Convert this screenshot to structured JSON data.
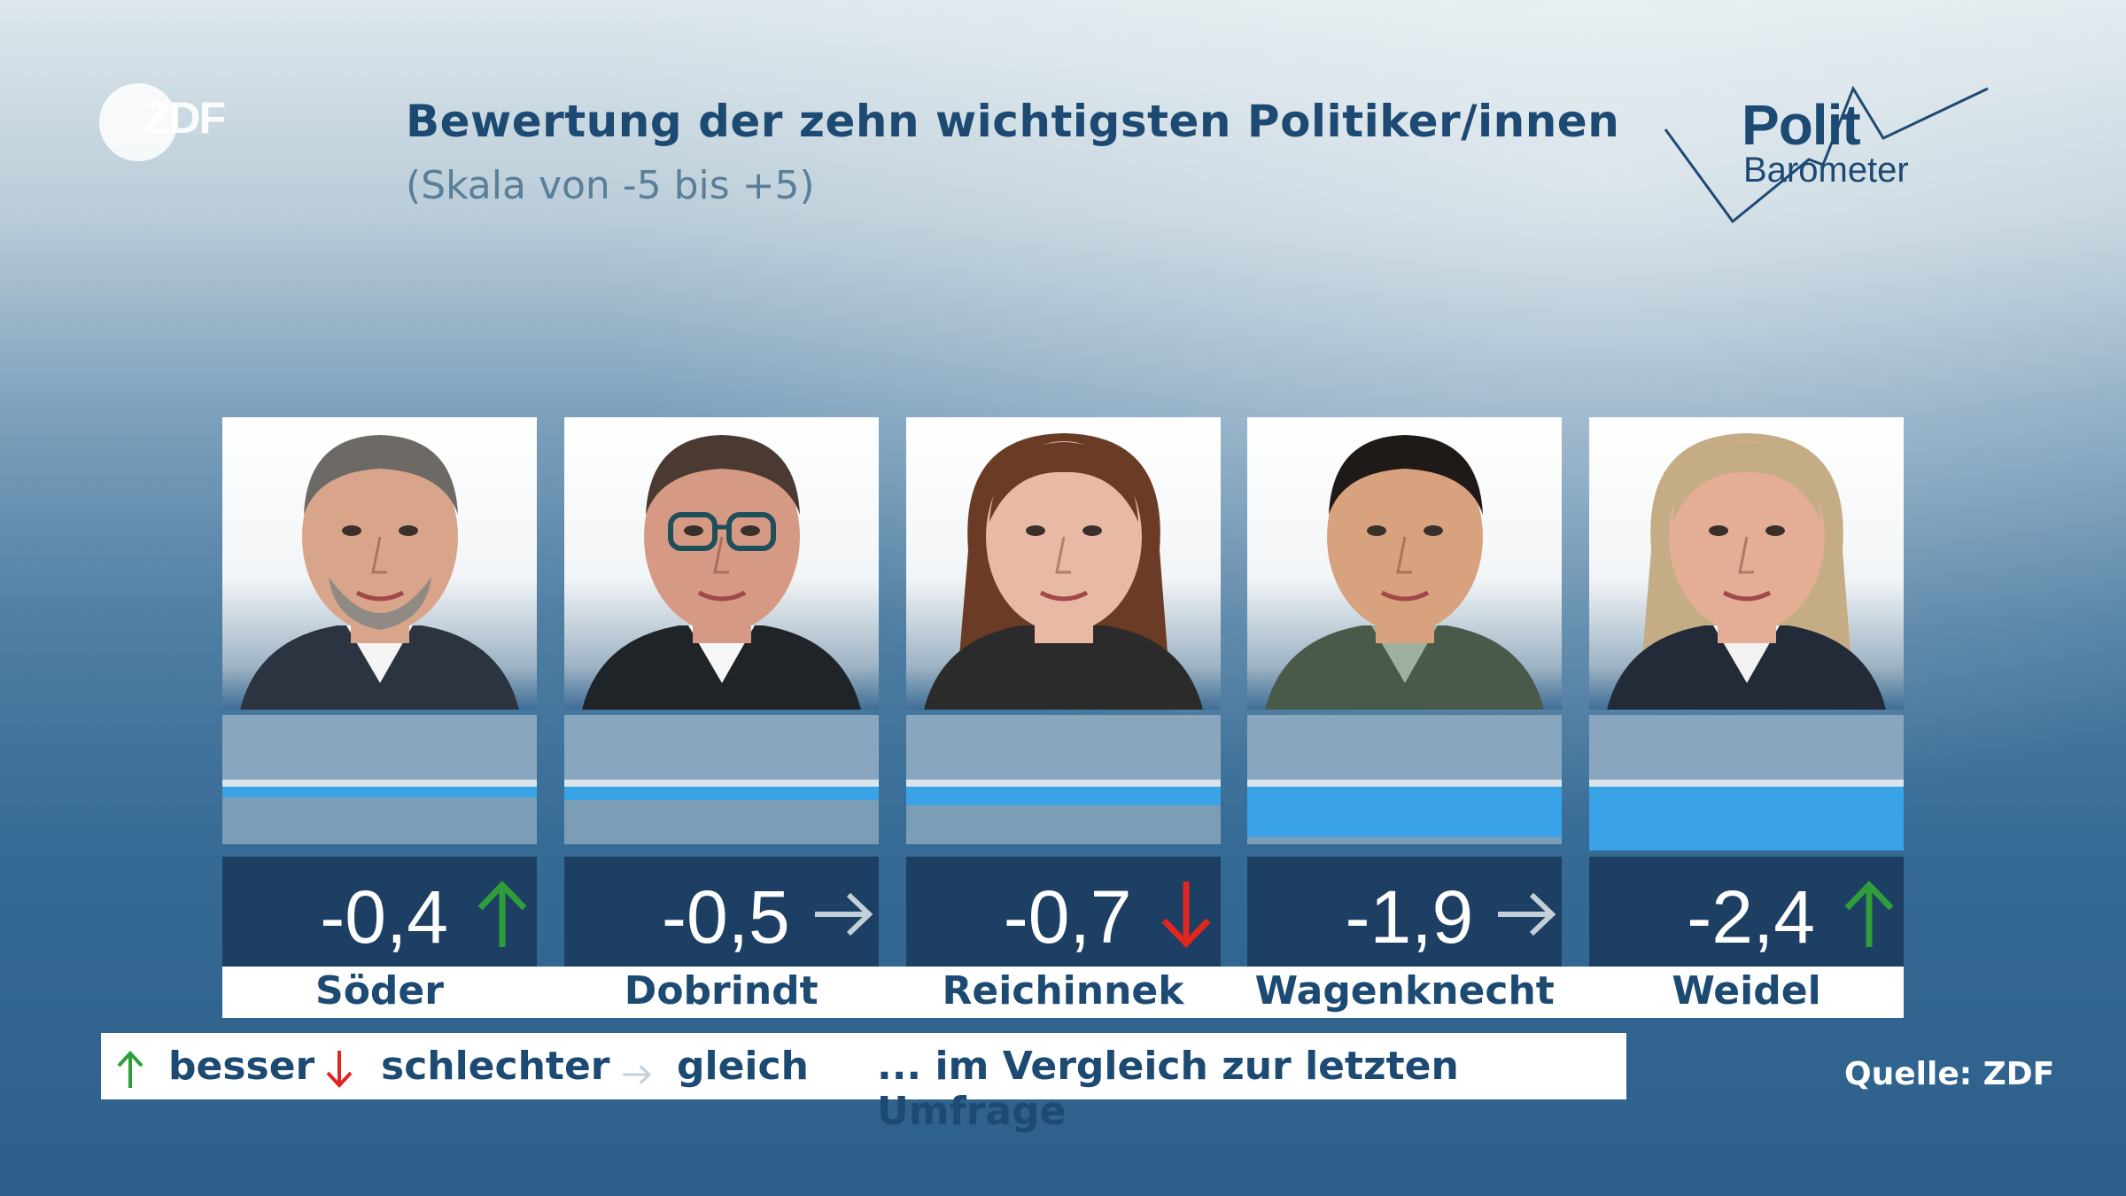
{
  "header": {
    "title": "Bewertung der zehn wichtigsten Politiker/innen",
    "subtitle": "(Skala von -5 bis +5)"
  },
  "branding": {
    "zdf_logo": "ZDF",
    "polit_word": "Polit",
    "barometer_word": "Barometer"
  },
  "colors": {
    "up": "#2e9e3a",
    "down": "#e0261f",
    "same": "#c4d0d9",
    "bar": "#3aa2e6",
    "value_box": "#1d3f64",
    "title": "#1d4a72"
  },
  "chart_data": {
    "type": "bar",
    "title": "Bewertung der zehn wichtigsten Politiker/innen",
    "subtitle": "(Skala von -5 bis +5)",
    "categories": [
      "Söder",
      "Dobrindt",
      "Reichinnek",
      "Wagenknecht",
      "Weidel"
    ],
    "values": [
      -0.4,
      -0.5,
      -0.7,
      -1.9,
      -2.4
    ],
    "value_labels": [
      "-0,4",
      "-0,5",
      "-0,7",
      "-1,9",
      "-2,4"
    ],
    "trend": [
      "up",
      "same",
      "down",
      "same",
      "up"
    ],
    "ylim": [
      -5,
      5
    ]
  },
  "legend": {
    "better": "besser",
    "worse": "schlechter",
    "same": "gleich",
    "note": "... im Vergleich zur letzten Umfrage"
  },
  "source": "Quelle: ZDF"
}
